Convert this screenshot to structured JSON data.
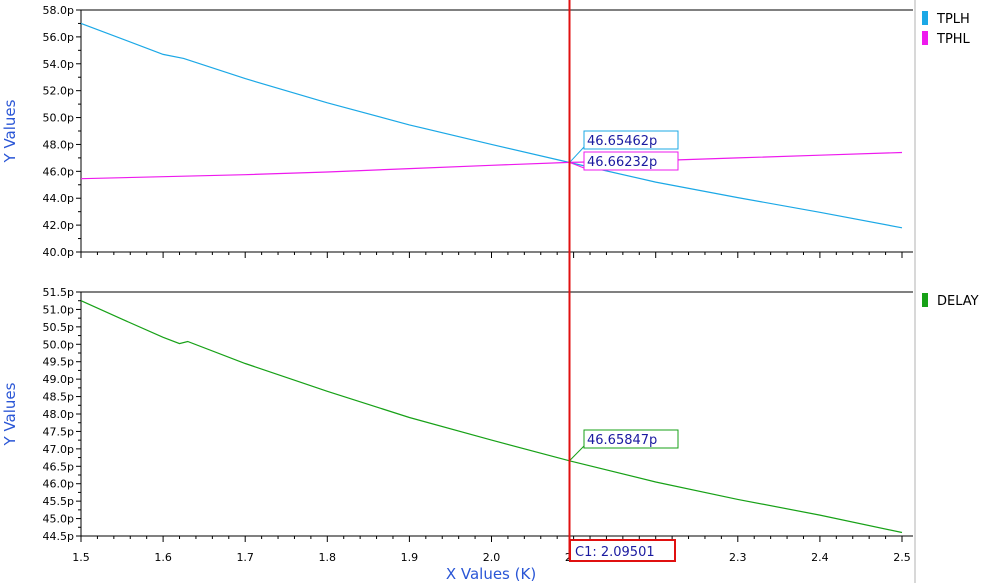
{
  "colors": {
    "tplh": "#1ba8e6",
    "tphl": "#ee1aee",
    "delay": "#17a117",
    "cursor": "#e01010",
    "label_text": "#1a1aa0",
    "axis_label": "#2a56d6"
  },
  "x_axis": {
    "label": "X Values (K)",
    "ticks": [
      "1.5",
      "1.6",
      "1.7",
      "1.8",
      "1.9",
      "2.0",
      "2.1",
      "2.2",
      "2.3",
      "2.4",
      "2.5"
    ]
  },
  "cursor": {
    "label": "C1: 2.09501",
    "x": 2.09501
  },
  "chart_data": [
    {
      "type": "line",
      "ylabel": "Y Values",
      "xlim": [
        1.5,
        2.5
      ],
      "ylim": [
        40.0,
        58.0
      ],
      "yticks": [
        "58.0p",
        "56.0p",
        "54.0p",
        "52.0p",
        "50.0p",
        "48.0p",
        "46.0p",
        "44.0p",
        "42.0p",
        "40.0p"
      ],
      "legend": "right",
      "series": [
        {
          "name": "TPLH",
          "x": [
            1.5,
            1.6,
            1.625,
            1.7,
            1.8,
            1.9,
            2.0,
            2.09501,
            2.2,
            2.3,
            2.4,
            2.5
          ],
          "y": [
            57.0,
            54.7,
            54.4,
            52.9,
            51.1,
            49.45,
            48.0,
            46.65462,
            45.2,
            44.05,
            42.95,
            41.8
          ],
          "marker": "46.65462p"
        },
        {
          "name": "TPHL",
          "x": [
            1.5,
            1.6,
            1.7,
            1.8,
            1.9,
            2.0,
            2.09501,
            2.2,
            2.3,
            2.4,
            2.5
          ],
          "y": [
            45.45,
            45.6,
            45.75,
            45.95,
            46.2,
            46.45,
            46.66232,
            46.8,
            47.0,
            47.2,
            47.4
          ],
          "marker": "46.66232p"
        }
      ]
    },
    {
      "type": "line",
      "ylabel": "Y Values",
      "xlim": [
        1.5,
        2.5
      ],
      "ylim": [
        44.5,
        51.5
      ],
      "yticks": [
        "51.5p",
        "51.0p",
        "50.5p",
        "50.0p",
        "49.5p",
        "49.0p",
        "48.5p",
        "48.0p",
        "47.5p",
        "47.0p",
        "46.5p",
        "46.0p",
        "45.5p",
        "45.0p",
        "44.5p"
      ],
      "legend": "right",
      "series": [
        {
          "name": "DELAY",
          "x": [
            1.5,
            1.55,
            1.6,
            1.62,
            1.63,
            1.7,
            1.8,
            1.9,
            2.0,
            2.09501,
            2.2,
            2.3,
            2.4,
            2.5
          ],
          "y": [
            51.25,
            50.72,
            50.2,
            50.02,
            50.08,
            49.45,
            48.65,
            47.9,
            47.25,
            46.65847,
            46.05,
            45.55,
            45.1,
            44.6
          ],
          "marker": "46.65847p"
        }
      ]
    }
  ]
}
